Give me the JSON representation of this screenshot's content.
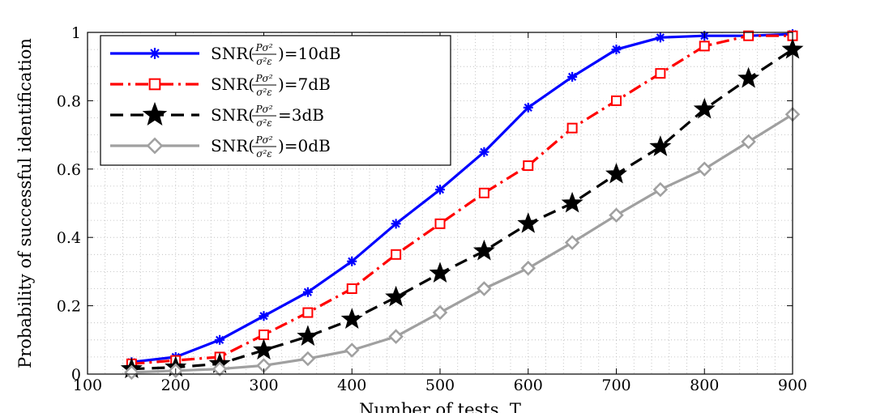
{
  "chart_data": {
    "type": "line",
    "xlabel": "Number of tests, T",
    "ylabel": "Probability of successful identification",
    "xlim": [
      100,
      900
    ],
    "ylim": [
      0,
      1
    ],
    "xticks": [
      100,
      200,
      300,
      400,
      500,
      600,
      700,
      800,
      900
    ],
    "yticks": [
      0,
      0.2,
      0.4,
      0.6,
      0.8,
      1
    ],
    "ytick_labels": [
      "0",
      "0.2",
      "0.4",
      "0.6",
      "0.8",
      "1"
    ],
    "grid": true,
    "legend_position": "top-left",
    "x": [
      150,
      200,
      250,
      300,
      350,
      400,
      450,
      500,
      550,
      600,
      650,
      700,
      750,
      800,
      850,
      900
    ],
    "series": [
      {
        "name": "SNR(Pσ²/σ²ε)=10dB",
        "color": "#0000ff",
        "style": "solid",
        "marker": "asterisk",
        "values": [
          0.035,
          0.05,
          0.1,
          0.17,
          0.24,
          0.33,
          0.44,
          0.54,
          0.65,
          0.78,
          0.87,
          0.95,
          0.985,
          0.99,
          0.99,
          0.995
        ]
      },
      {
        "name": "SNR(Pσ²/σ²ε)=7dB",
        "color": "#ff0000",
        "style": "dashdot",
        "marker": "square",
        "values": [
          0.03,
          0.04,
          0.05,
          0.115,
          0.18,
          0.25,
          0.35,
          0.44,
          0.53,
          0.61,
          0.72,
          0.8,
          0.88,
          0.96,
          0.99,
          0.99
        ]
      },
      {
        "name": "SNR(Pσ²/σ²ε=3dB",
        "color": "#000000",
        "style": "dashed",
        "marker": "star",
        "values": [
          0.015,
          0.02,
          0.03,
          0.07,
          0.11,
          0.16,
          0.225,
          0.295,
          0.36,
          0.44,
          0.5,
          0.585,
          0.665,
          0.775,
          0.865,
          0.95
        ]
      },
      {
        "name": "SNR(Pσ²/σ²ε)=0dB",
        "color": "#a0a0a0",
        "style": "solid",
        "marker": "diamond",
        "values": [
          0.005,
          0.01,
          0.015,
          0.025,
          0.045,
          0.07,
          0.11,
          0.18,
          0.25,
          0.31,
          0.385,
          0.465,
          0.54,
          0.6,
          0.68,
          0.76
        ]
      }
    ],
    "legend": [
      {
        "pre": "SNR(",
        "num": "Pσ²",
        "den": "σ²ε",
        "post": ")=10dB"
      },
      {
        "pre": "SNR(",
        "num": "Pσ²",
        "den": "σ²ε",
        "post": ")=7dB"
      },
      {
        "pre": "SNR(",
        "num": "Pσ²",
        "den": "σ²ε",
        "post": "=3dB"
      },
      {
        "pre": "SNR(",
        "num": "Pσ²",
        "den": "σ²ε",
        "post": ")=0dB"
      }
    ]
  }
}
